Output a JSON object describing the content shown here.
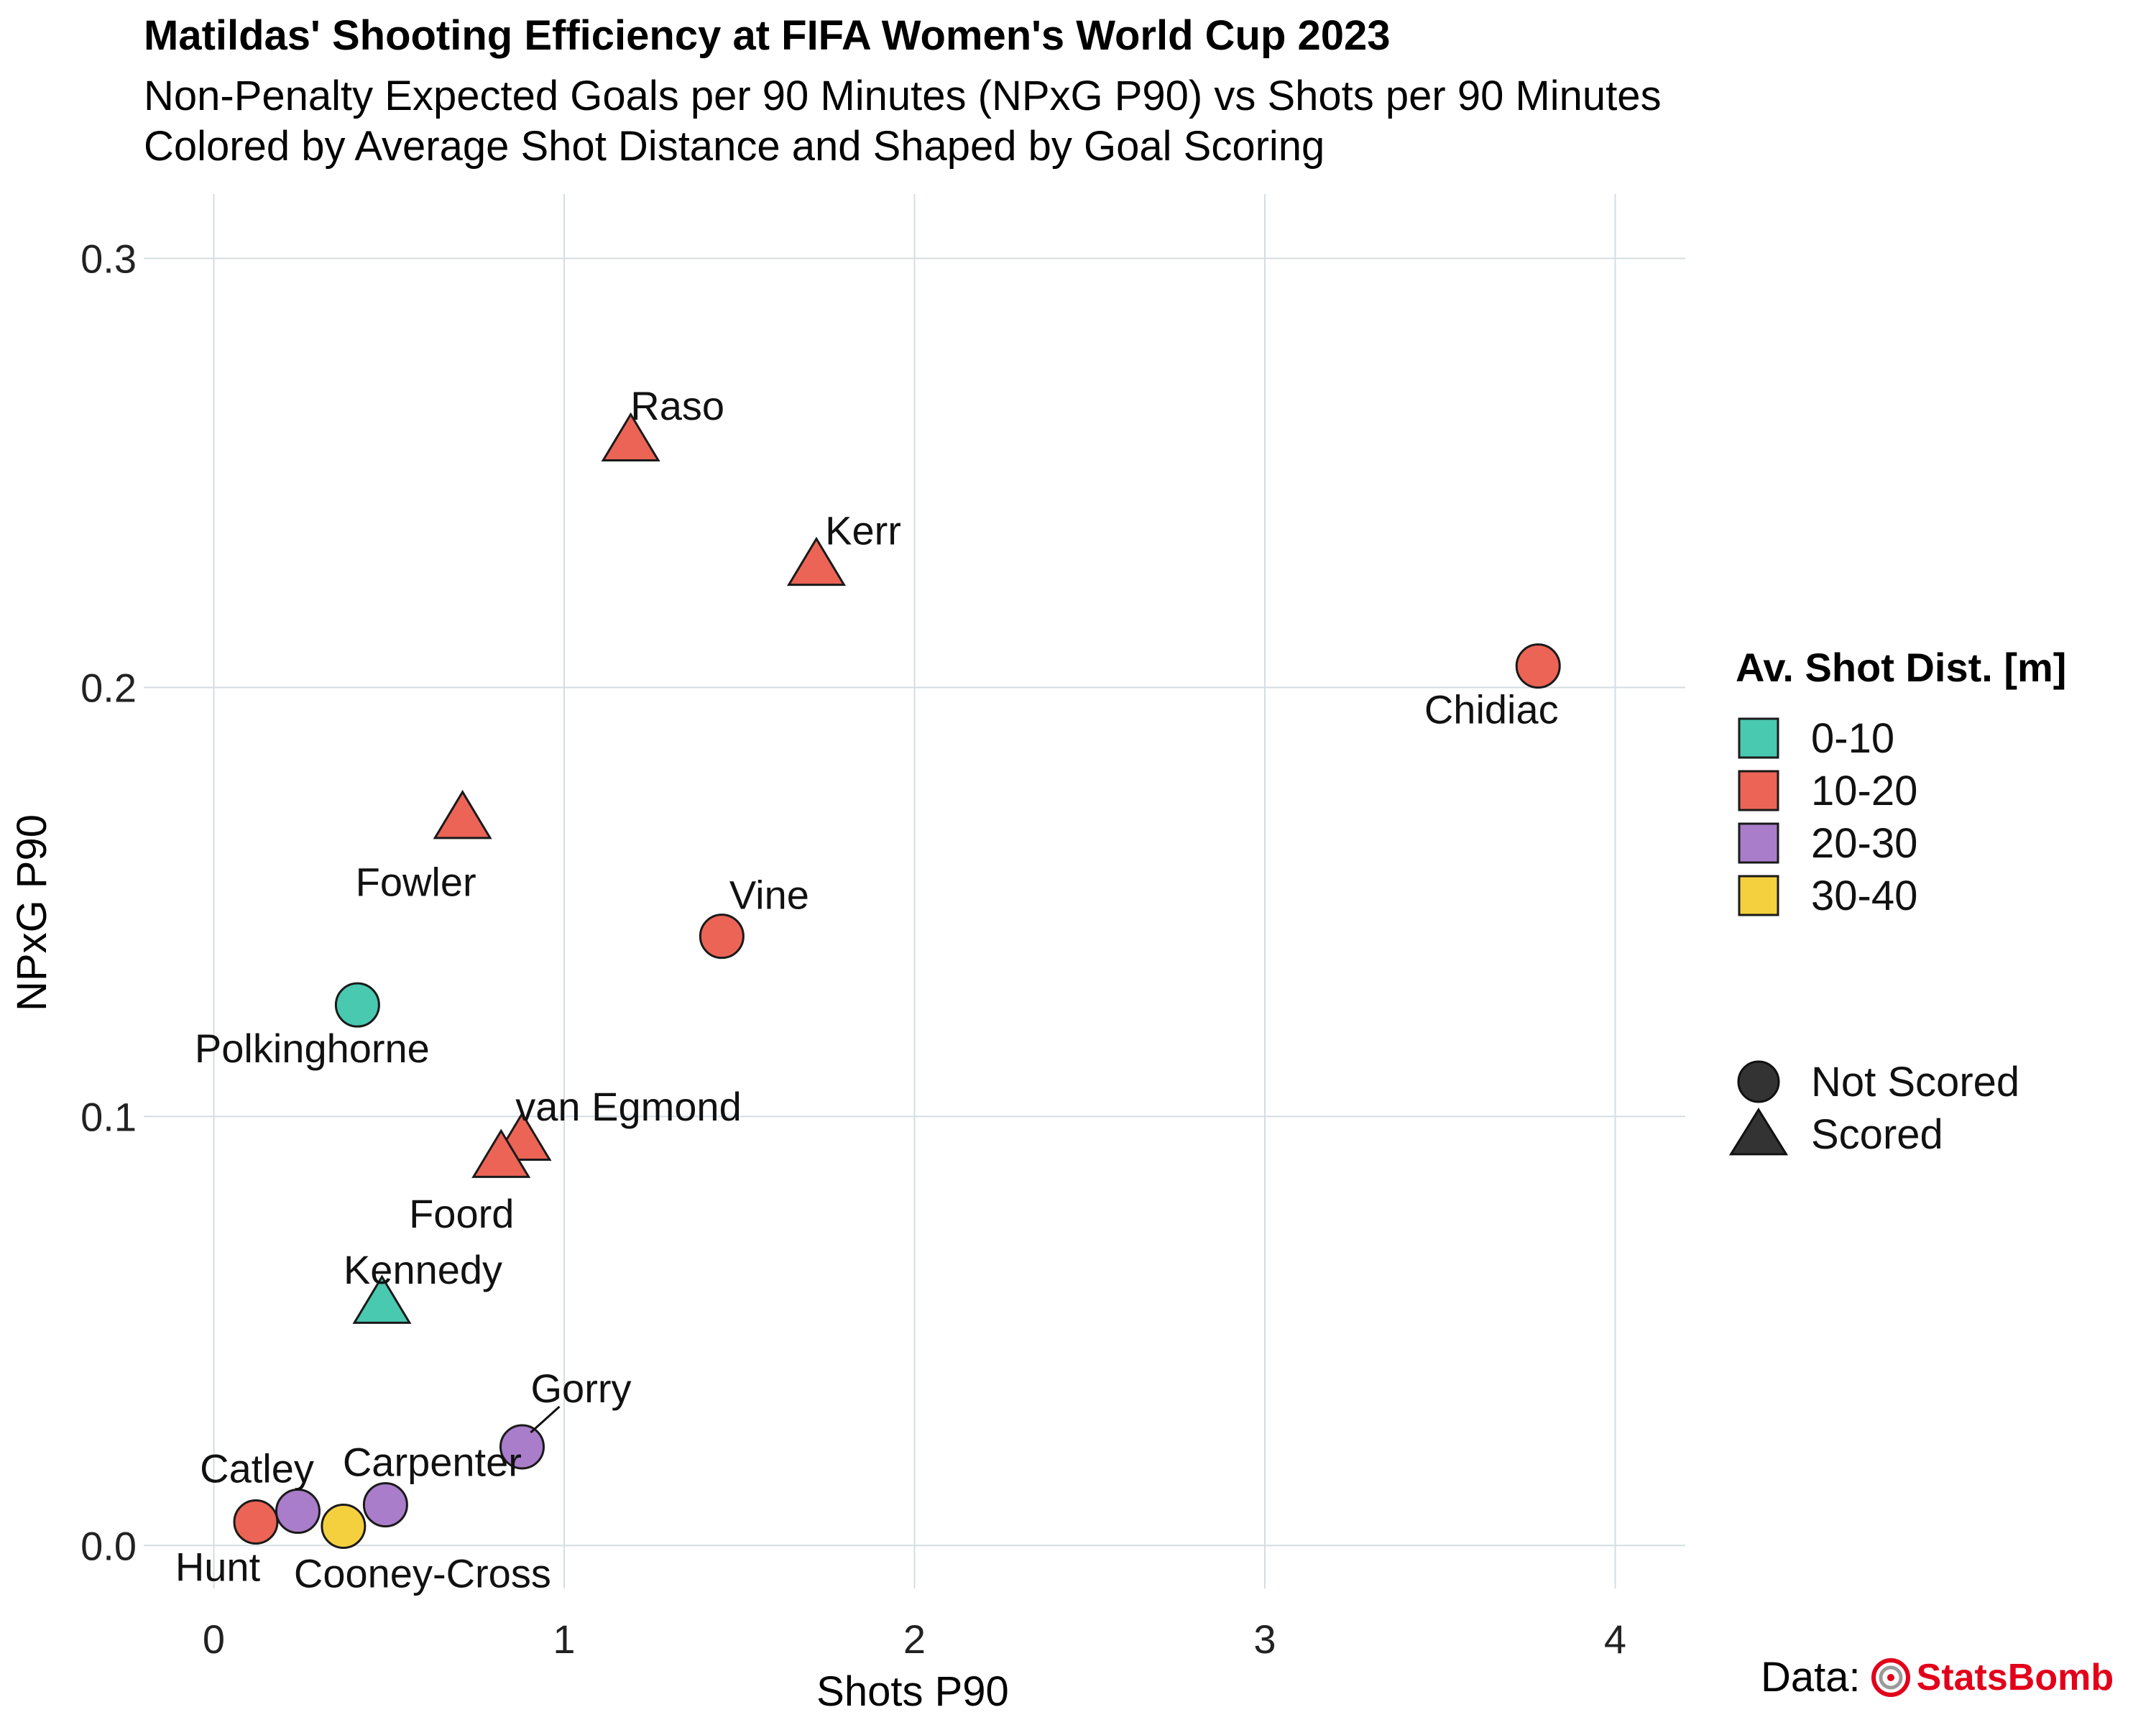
{
  "title": "Matildas' Shooting Efficiency at FIFA Women's World Cup 2023",
  "subtitle_line1": "Non-Penalty Expected Goals per 90 Minutes (NPxG P90) vs Shots per 90 Minutes",
  "subtitle_line2": "Colored by Average Shot Distance and Shaped by Goal Scoring",
  "source": {
    "prefix": "Data:",
    "brand": "StatsBomb",
    "brand_icon": "statsbomb-logo-icon",
    "brand_color": "#e2001a"
  },
  "chart_data": {
    "type": "scatter",
    "xlabel": "Shots P90",
    "ylabel": "NPxG P90",
    "xlim": [
      -0.2,
      4.2
    ],
    "ylim": [
      -0.01,
      0.315
    ],
    "x_ticks": [
      0,
      1,
      2,
      3,
      4
    ],
    "y_ticks": [
      0.0,
      0.1,
      0.2,
      0.3
    ],
    "x_tick_labels": [
      "0",
      "1",
      "2",
      "3",
      "4"
    ],
    "y_tick_labels": [
      "0.0",
      "0.1",
      "0.2",
      "0.3"
    ],
    "grid": true,
    "legend_placement": "right",
    "color_legend": {
      "title": "Av. Shot Dist. [m]",
      "entries": [
        {
          "label": "0-10",
          "color": "#48c9b0"
        },
        {
          "label": "10-20",
          "color": "#ec6456"
        },
        {
          "label": "20-30",
          "color": "#a97dc9"
        },
        {
          "label": "30-40",
          "color": "#f4d03f"
        }
      ]
    },
    "shape_legend": {
      "entries": [
        {
          "label": "Not Scored",
          "shape": "circle"
        },
        {
          "label": "Scored",
          "shape": "triangle"
        }
      ]
    },
    "points": [
      {
        "name": "Raso",
        "x": 1.19,
        "y": 0.257,
        "dist": "10-20",
        "scored": true
      },
      {
        "name": "Kerr",
        "x": 1.72,
        "y": 0.228,
        "dist": "10-20",
        "scored": true
      },
      {
        "name": "Chidiac",
        "x": 3.78,
        "y": 0.205,
        "dist": "10-20",
        "scored": false
      },
      {
        "name": "Fowler",
        "x": 0.71,
        "y": 0.169,
        "dist": "10-20",
        "scored": true
      },
      {
        "name": "Vine",
        "x": 1.45,
        "y": 0.142,
        "dist": "10-20",
        "scored": false
      },
      {
        "name": "Polkinghorne",
        "x": 0.41,
        "y": 0.126,
        "dist": "0-10",
        "scored": false
      },
      {
        "name": "van Egmond",
        "x": 0.88,
        "y": 0.094,
        "dist": "10-20",
        "scored": true
      },
      {
        "name": "Foord",
        "x": 0.82,
        "y": 0.09,
        "dist": "10-20",
        "scored": true
      },
      {
        "name": "Kennedy",
        "x": 0.48,
        "y": 0.056,
        "dist": "0-10",
        "scored": true
      },
      {
        "name": "Gorry",
        "x": 0.88,
        "y": 0.023,
        "dist": "20-30",
        "scored": false
      },
      {
        "name": "Carpenter",
        "x": 0.49,
        "y": 0.0095,
        "dist": "20-30",
        "scored": false
      },
      {
        "name": "Catley",
        "x": 0.24,
        "y": 0.008,
        "dist": "20-30",
        "scored": false
      },
      {
        "name": "Hunt",
        "x": 0.12,
        "y": 0.0055,
        "dist": "10-20",
        "scored": false
      },
      {
        "name": "Cooney-Cross",
        "x": 0.37,
        "y": 0.0045,
        "dist": "30-40",
        "scored": false
      }
    ]
  }
}
